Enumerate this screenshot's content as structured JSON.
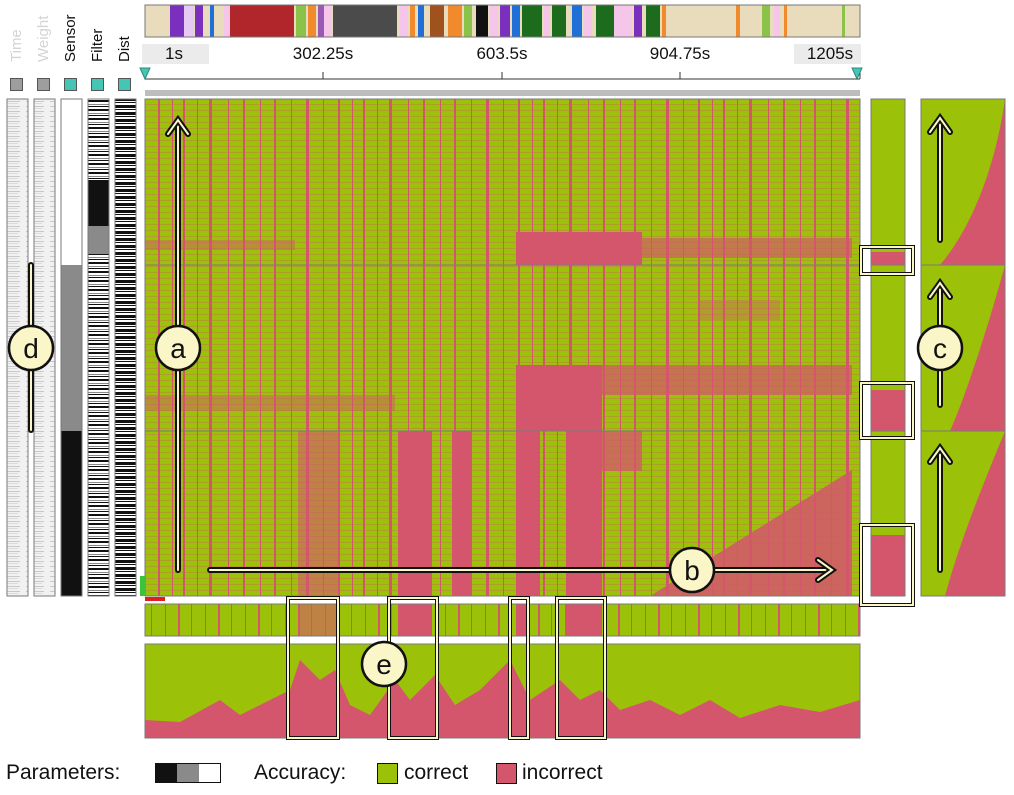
{
  "colors": {
    "correct": "#9bc208",
    "incorrect": "#d4566c",
    "frame": "#7a7a7a",
    "callout_fill": "#fbf6c8",
    "callout_stroke": "#111111",
    "toggle_gray": "#9e9e9e",
    "toggle_teal": "#45c5b3"
  },
  "parameters": {
    "title": "Parameters:",
    "columns": [
      {
        "name": "Time",
        "enabled": false
      },
      {
        "name": "Weight",
        "enabled": false
      },
      {
        "name": "Sensor",
        "enabled": true
      },
      {
        "name": "Filter",
        "enabled": true
      },
      {
        "name": "Dist",
        "enabled": true
      }
    ],
    "swatches": [
      "#111111",
      "#8a8a8a",
      "#ffffff"
    ]
  },
  "legend": {
    "accuracy_title": "Accuracy:",
    "correct_label": "correct",
    "incorrect_label": "incorrect"
  },
  "chart_data": {
    "type": "heatmap",
    "x_unit": "s",
    "x_range": [
      1,
      1205
    ],
    "x_ticks": [
      "1s",
      "302.25s",
      "603.5s",
      "904.75s",
      "1205s"
    ],
    "row_groups": [
      "group-1",
      "group-2",
      "group-3"
    ],
    "values": [
      "correct",
      "incorrect"
    ],
    "incorrect_column_bands_s": [
      [
        522,
        600
      ],
      [
        633,
        671
      ],
      [
        815,
        825
      ],
      [
        880,
        923
      ]
    ],
    "callouts": [
      "a",
      "b",
      "c",
      "d",
      "e"
    ]
  }
}
